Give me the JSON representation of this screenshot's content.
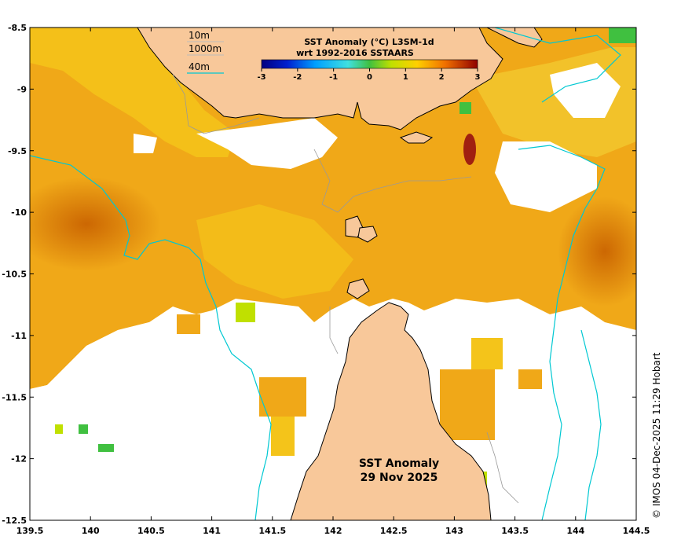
{
  "colorbar": {
    "title_line1": "SST Anomaly (°C) L3SM-1d",
    "title_line2": "wrt 1992-2016 SSTAARS",
    "ticks": [
      "-3",
      "-2",
      "-1",
      "0",
      "1",
      "2",
      "3"
    ]
  },
  "contour_key": {
    "items": [
      {
        "label": "10m",
        "color": "#bbbbbb"
      },
      {
        "label": "1000m",
        "color": "#bbbbbb"
      },
      {
        "label": "40m",
        "color": "#00c8d2"
      }
    ]
  },
  "annotation": {
    "line1": "SST Anomaly",
    "line2": "29 Nov 2025"
  },
  "credit": "© IMOS 04-Dec-2025 11:29 Hobart",
  "axes": {
    "y_ticks": [
      "-8.5",
      "-9",
      "-9.5",
      "-10",
      "-10.5",
      "-11",
      "-11.5",
      "-12",
      "-12.5"
    ],
    "x_ticks": [
      "139.5",
      "140",
      "140.5",
      "141",
      "141.5",
      "142",
      "142.5",
      "143",
      "143.5",
      "144",
      "144.5"
    ]
  },
  "colors": {
    "land": "#f8c89a",
    "warm_anomaly": "#f0a010",
    "mild_anomaly": "#f4c000",
    "strong_anomaly": "#c86000",
    "contour_40m": "#00c8d2",
    "contour_shallow": "#999999"
  }
}
